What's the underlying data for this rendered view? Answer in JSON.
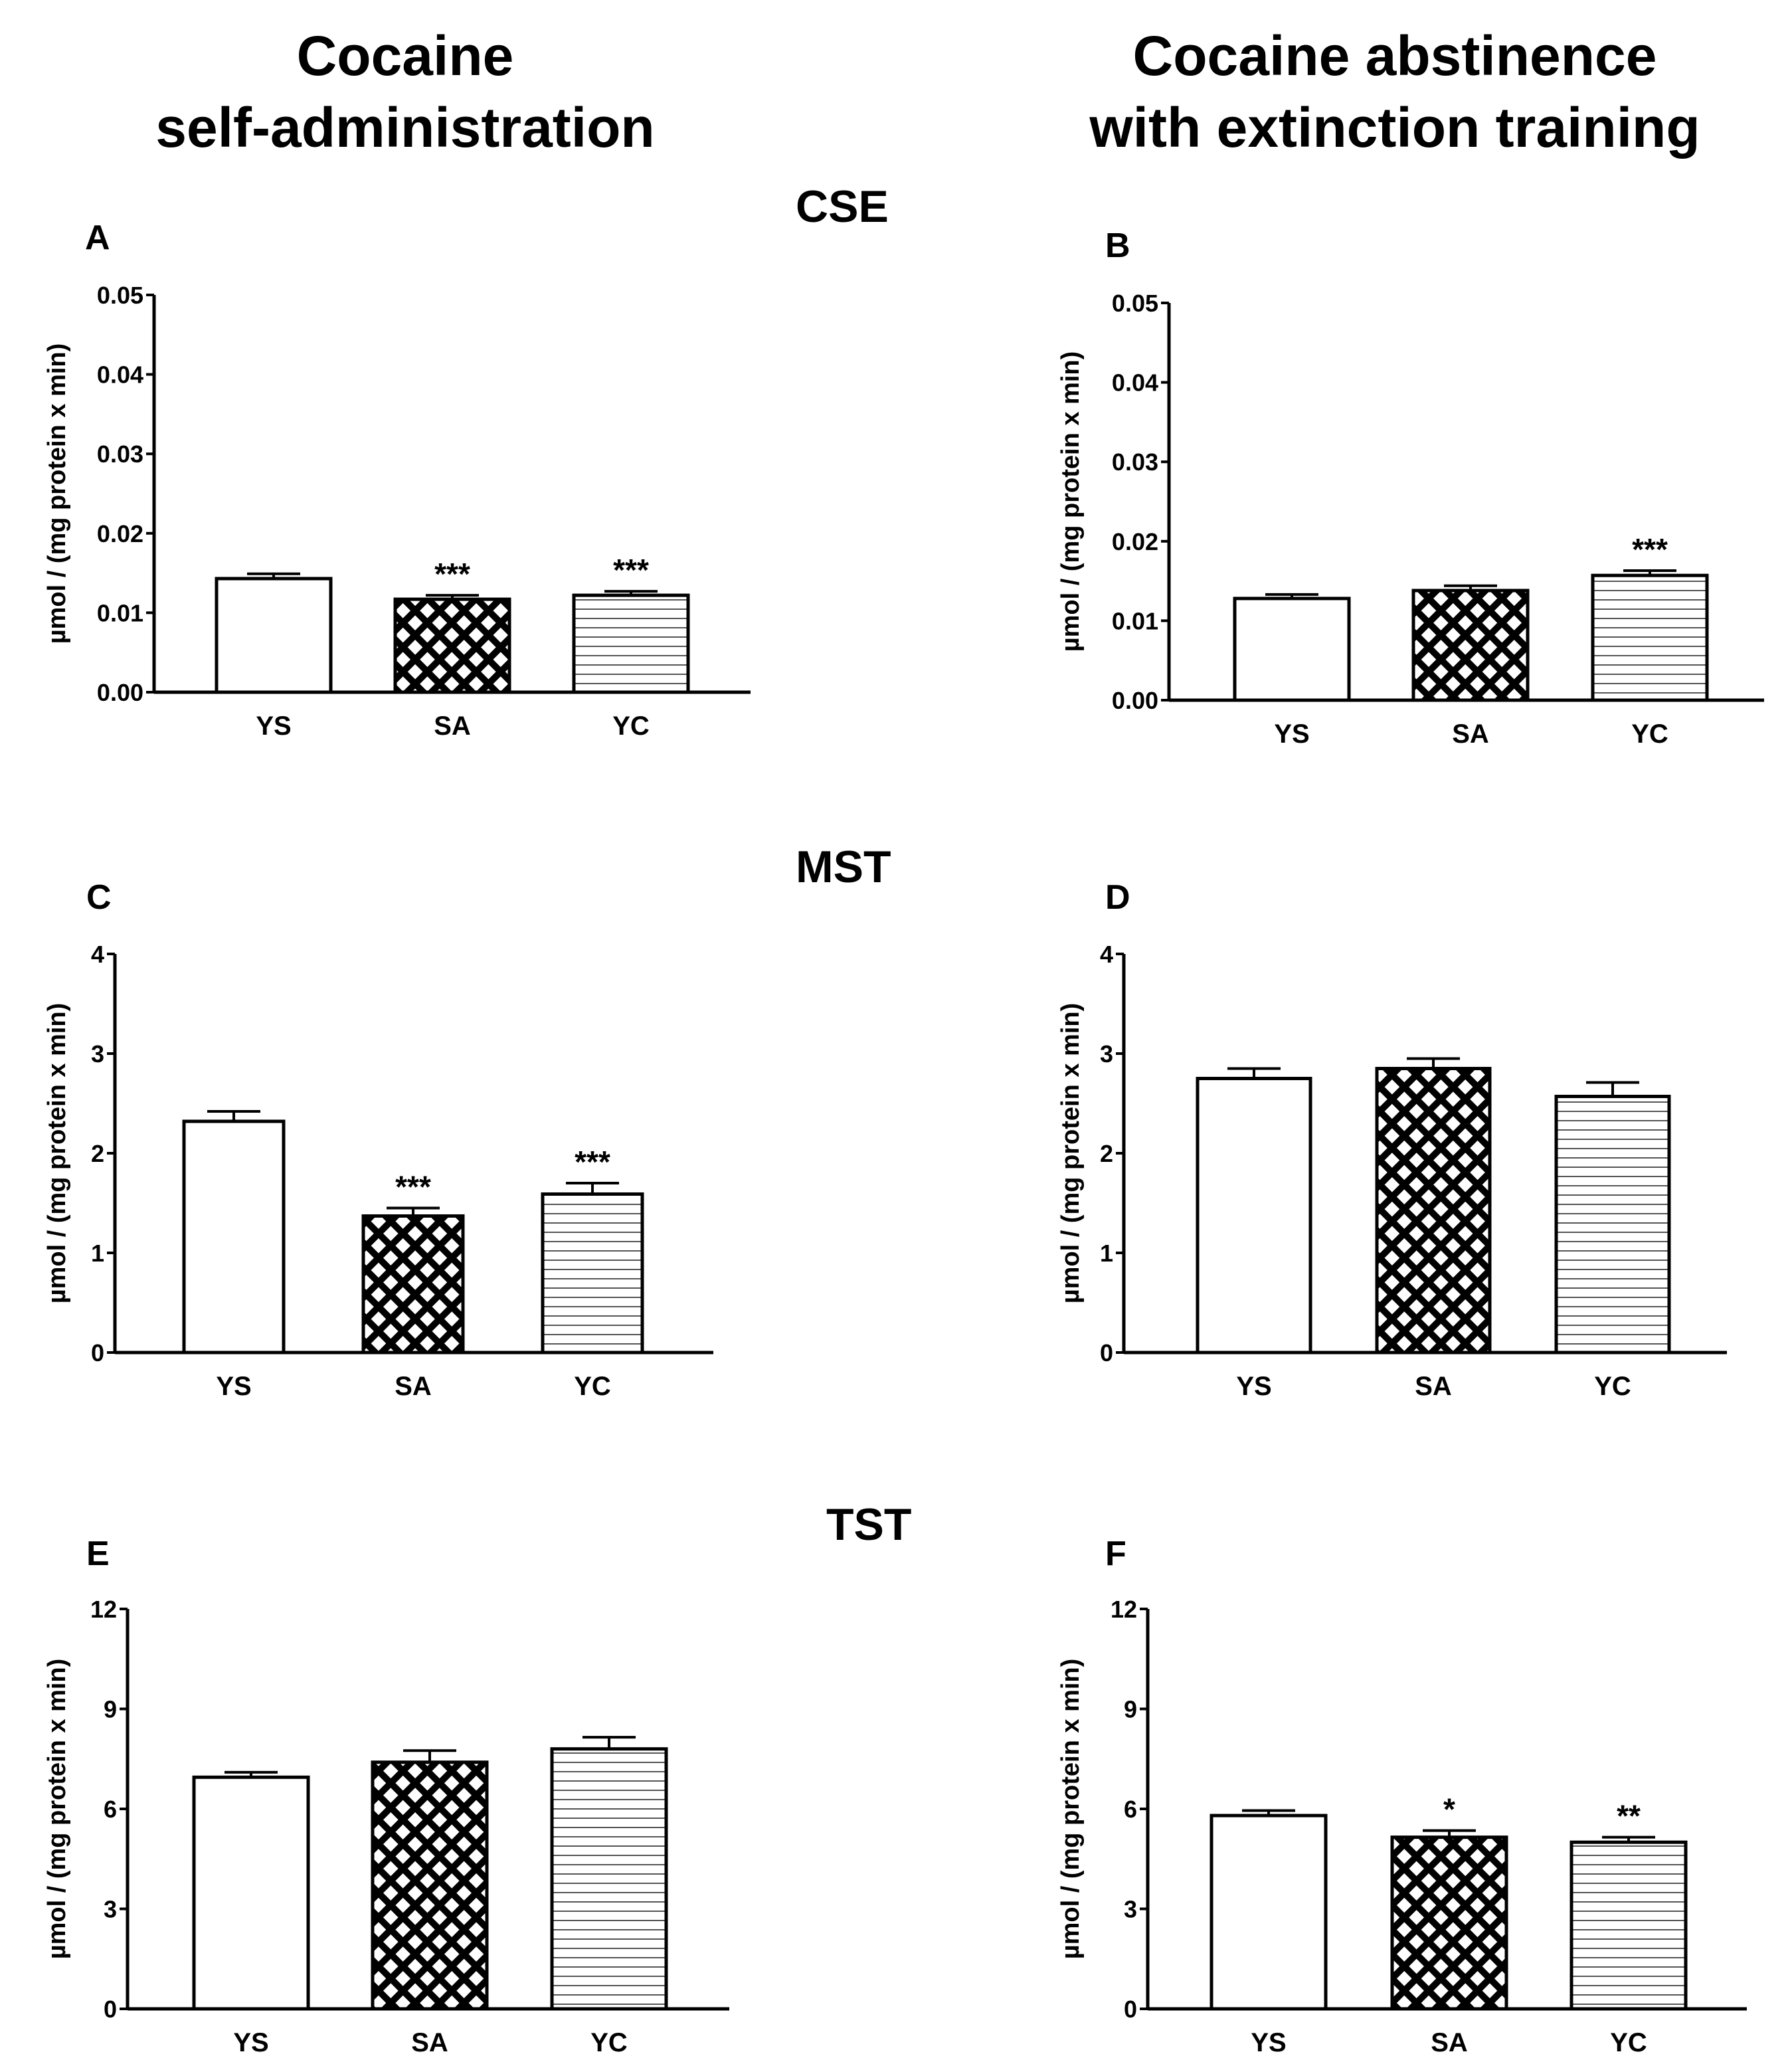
{
  "headers": {
    "left": [
      "Cocaine",
      "self-administration"
    ],
    "right": [
      "Cocaine abstinence",
      "with extinction training"
    ]
  },
  "sections": [
    "CSE",
    "MST",
    "TST"
  ],
  "colors": {
    "ink": "#000000",
    "background": "#ffffff"
  },
  "chart_data": [
    {
      "panel": "A",
      "type": "bar",
      "section": "CSE",
      "categories": [
        "YS",
        "SA",
        "YC"
      ],
      "values": [
        0.0143,
        0.0117,
        0.0122
      ],
      "errors": [
        0.0006,
        0.0005,
        0.0005
      ],
      "significance": [
        "",
        "***",
        "***"
      ],
      "ylabel": "µmol / (mg protein x min)",
      "ylim": [
        0,
        0.05
      ],
      "yticks": [
        0,
        0.01,
        0.02,
        0.03,
        0.04,
        0.05
      ],
      "ytick_labels": [
        "0.00",
        "0.01",
        "0.02",
        "0.03",
        "0.04",
        "0.05"
      ],
      "fills": [
        "open",
        "crosshatch",
        "horizontal-lines"
      ]
    },
    {
      "panel": "B",
      "type": "bar",
      "section": "CSE",
      "categories": [
        "YS",
        "SA",
        "YC"
      ],
      "values": [
        0.0128,
        0.0138,
        0.0157
      ],
      "errors": [
        0.0005,
        0.0006,
        0.0006
      ],
      "significance": [
        "",
        "",
        "***"
      ],
      "ylabel": "µmol / (mg protein x min)",
      "ylim": [
        0,
        0.05
      ],
      "yticks": [
        0,
        0.01,
        0.02,
        0.03,
        0.04,
        0.05
      ],
      "ytick_labels": [
        "0.00",
        "0.01",
        "0.02",
        "0.03",
        "0.04",
        "0.05"
      ],
      "fills": [
        "open",
        "crosshatch",
        "horizontal-lines"
      ]
    },
    {
      "panel": "C",
      "type": "bar",
      "section": "MST",
      "categories": [
        "YS",
        "SA",
        "YC"
      ],
      "values": [
        2.32,
        1.37,
        1.59
      ],
      "errors": [
        0.1,
        0.08,
        0.11
      ],
      "significance": [
        "",
        "***",
        "***"
      ],
      "ylabel": "µmol / (mg protein x min)",
      "ylim": [
        0,
        4
      ],
      "yticks": [
        0,
        1,
        2,
        3,
        4
      ],
      "ytick_labels": [
        "0",
        "1",
        "2",
        "3",
        "4"
      ],
      "fills": [
        "open",
        "crosshatch",
        "horizontal-lines"
      ]
    },
    {
      "panel": "D",
      "type": "bar",
      "section": "MST",
      "categories": [
        "YS",
        "SA",
        "YC"
      ],
      "values": [
        2.75,
        2.85,
        2.57
      ],
      "errors": [
        0.1,
        0.1,
        0.14
      ],
      "significance": [
        "",
        "",
        ""
      ],
      "ylabel": "µmol / (mg protein x min)",
      "ylim": [
        0,
        4
      ],
      "yticks": [
        0,
        1,
        2,
        3,
        4
      ],
      "ytick_labels": [
        "0",
        "1",
        "2",
        "3",
        "4"
      ],
      "fills": [
        "open",
        "crosshatch",
        "horizontal-lines"
      ]
    },
    {
      "panel": "E",
      "type": "bar",
      "section": "TST",
      "categories": [
        "YS",
        "SA",
        "YC"
      ],
      "values": [
        6.95,
        7.4,
        7.8
      ],
      "errors": [
        0.15,
        0.35,
        0.35
      ],
      "significance": [
        "",
        "",
        ""
      ],
      "ylabel": "µmol / (mg protein x min)",
      "ylim": [
        0,
        12
      ],
      "yticks": [
        0,
        3,
        6,
        9,
        12
      ],
      "ytick_labels": [
        "0",
        "3",
        "6",
        "9",
        "12"
      ],
      "fills": [
        "open",
        "crosshatch",
        "horizontal-lines"
      ]
    },
    {
      "panel": "F",
      "type": "bar",
      "section": "TST",
      "categories": [
        "YS",
        "SA",
        "YC"
      ],
      "values": [
        5.8,
        5.15,
        5.0
      ],
      "errors": [
        0.15,
        0.2,
        0.15
      ],
      "significance": [
        "",
        "*",
        "**"
      ],
      "ylabel": "µmol / (mg protein x min)",
      "ylim": [
        0,
        12
      ],
      "yticks": [
        0,
        3,
        6,
        9,
        12
      ],
      "ytick_labels": [
        "0",
        "3",
        "6",
        "9",
        "12"
      ],
      "fills": [
        "open",
        "crosshatch",
        "horizontal-lines"
      ]
    }
  ]
}
